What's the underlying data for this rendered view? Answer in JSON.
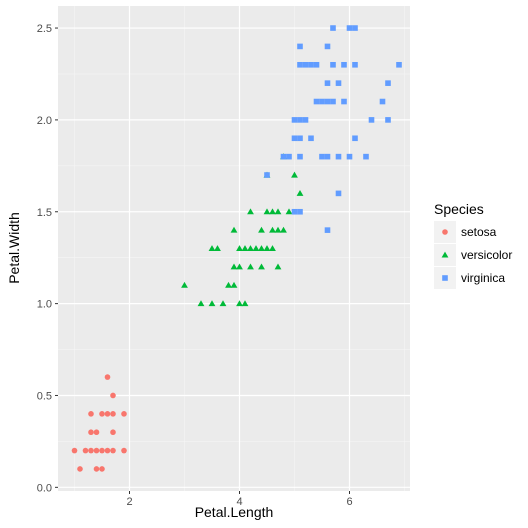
{
  "chart_data": {
    "type": "scatter",
    "xlabel": "Petal.Length",
    "ylabel": "Petal.Width",
    "xlim": [
      0.7,
      7.1
    ],
    "ylim": [
      -0.02,
      2.62
    ],
    "x_ticks": [
      2,
      4,
      6
    ],
    "y_ticks": [
      0.0,
      0.5,
      1.0,
      1.5,
      2.0,
      2.5
    ],
    "y_tick_labels": [
      "0.0",
      "0.5",
      "1.0",
      "1.5",
      "2.0",
      "2.5"
    ],
    "grid": true,
    "legend": {
      "title": "Species",
      "placement": "right"
    },
    "series": [
      {
        "name": "setosa",
        "color": "#F8766D",
        "shape": "circle",
        "points": [
          [
            1.0,
            0.2
          ],
          [
            1.1,
            0.1
          ],
          [
            1.2,
            0.2
          ],
          [
            1.3,
            0.2
          ],
          [
            1.3,
            0.3
          ],
          [
            1.3,
            0.4
          ],
          [
            1.4,
            0.1
          ],
          [
            1.4,
            0.2
          ],
          [
            1.4,
            0.3
          ],
          [
            1.5,
            0.1
          ],
          [
            1.5,
            0.2
          ],
          [
            1.5,
            0.4
          ],
          [
            1.6,
            0.2
          ],
          [
            1.6,
            0.4
          ],
          [
            1.6,
            0.6
          ],
          [
            1.7,
            0.2
          ],
          [
            1.7,
            0.3
          ],
          [
            1.7,
            0.4
          ],
          [
            1.7,
            0.5
          ],
          [
            1.9,
            0.2
          ],
          [
            1.9,
            0.4
          ]
        ]
      },
      {
        "name": "versicolor",
        "color": "#00BA38",
        "shape": "triangle",
        "points": [
          [
            3.0,
            1.1
          ],
          [
            3.3,
            1.0
          ],
          [
            3.5,
            1.0
          ],
          [
            3.5,
            1.3
          ],
          [
            3.6,
            1.3
          ],
          [
            3.7,
            1.0
          ],
          [
            3.8,
            1.1
          ],
          [
            3.9,
            1.1
          ],
          [
            3.9,
            1.2
          ],
          [
            3.9,
            1.4
          ],
          [
            4.0,
            1.0
          ],
          [
            4.0,
            1.2
          ],
          [
            4.0,
            1.3
          ],
          [
            4.1,
            1.0
          ],
          [
            4.1,
            1.3
          ],
          [
            4.2,
            1.2
          ],
          [
            4.2,
            1.3
          ],
          [
            4.2,
            1.5
          ],
          [
            4.3,
            1.3
          ],
          [
            4.4,
            1.2
          ],
          [
            4.4,
            1.3
          ],
          [
            4.4,
            1.4
          ],
          [
            4.5,
            1.3
          ],
          [
            4.5,
            1.5
          ],
          [
            4.5,
            1.7
          ],
          [
            4.6,
            1.3
          ],
          [
            4.6,
            1.4
          ],
          [
            4.6,
            1.5
          ],
          [
            4.7,
            1.2
          ],
          [
            4.7,
            1.4
          ],
          [
            4.7,
            1.5
          ],
          [
            4.8,
            1.4
          ],
          [
            4.8,
            1.8
          ],
          [
            4.9,
            1.5
          ],
          [
            5.0,
            1.7
          ],
          [
            5.1,
            1.6
          ]
        ]
      },
      {
        "name": "virginica",
        "color": "#619CFF",
        "shape": "square",
        "points": [
          [
            4.5,
            1.7
          ],
          [
            4.8,
            1.8
          ],
          [
            4.9,
            1.8
          ],
          [
            5.0,
            1.5
          ],
          [
            5.0,
            1.9
          ],
          [
            5.0,
            2.0
          ],
          [
            5.1,
            1.5
          ],
          [
            5.1,
            1.8
          ],
          [
            5.1,
            1.9
          ],
          [
            5.1,
            2.0
          ],
          [
            5.1,
            2.3
          ],
          [
            5.1,
            2.4
          ],
          [
            5.2,
            2.0
          ],
          [
            5.2,
            2.3
          ],
          [
            5.3,
            1.9
          ],
          [
            5.3,
            2.3
          ],
          [
            5.4,
            2.1
          ],
          [
            5.4,
            2.3
          ],
          [
            5.5,
            1.8
          ],
          [
            5.5,
            2.1
          ],
          [
            5.6,
            1.4
          ],
          [
            5.6,
            1.8
          ],
          [
            5.6,
            2.1
          ],
          [
            5.6,
            2.2
          ],
          [
            5.6,
            2.4
          ],
          [
            5.7,
            2.1
          ],
          [
            5.7,
            2.3
          ],
          [
            5.7,
            2.5
          ],
          [
            5.8,
            1.6
          ],
          [
            5.8,
            1.8
          ],
          [
            5.8,
            2.2
          ],
          [
            5.9,
            2.1
          ],
          [
            5.9,
            2.3
          ],
          [
            6.0,
            1.8
          ],
          [
            6.0,
            2.5
          ],
          [
            6.1,
            1.9
          ],
          [
            6.1,
            2.3
          ],
          [
            6.1,
            2.5
          ],
          [
            6.3,
            1.8
          ],
          [
            6.4,
            2.0
          ],
          [
            6.6,
            2.1
          ],
          [
            6.7,
            2.0
          ],
          [
            6.7,
            2.2
          ],
          [
            6.9,
            2.3
          ]
        ]
      }
    ]
  }
}
